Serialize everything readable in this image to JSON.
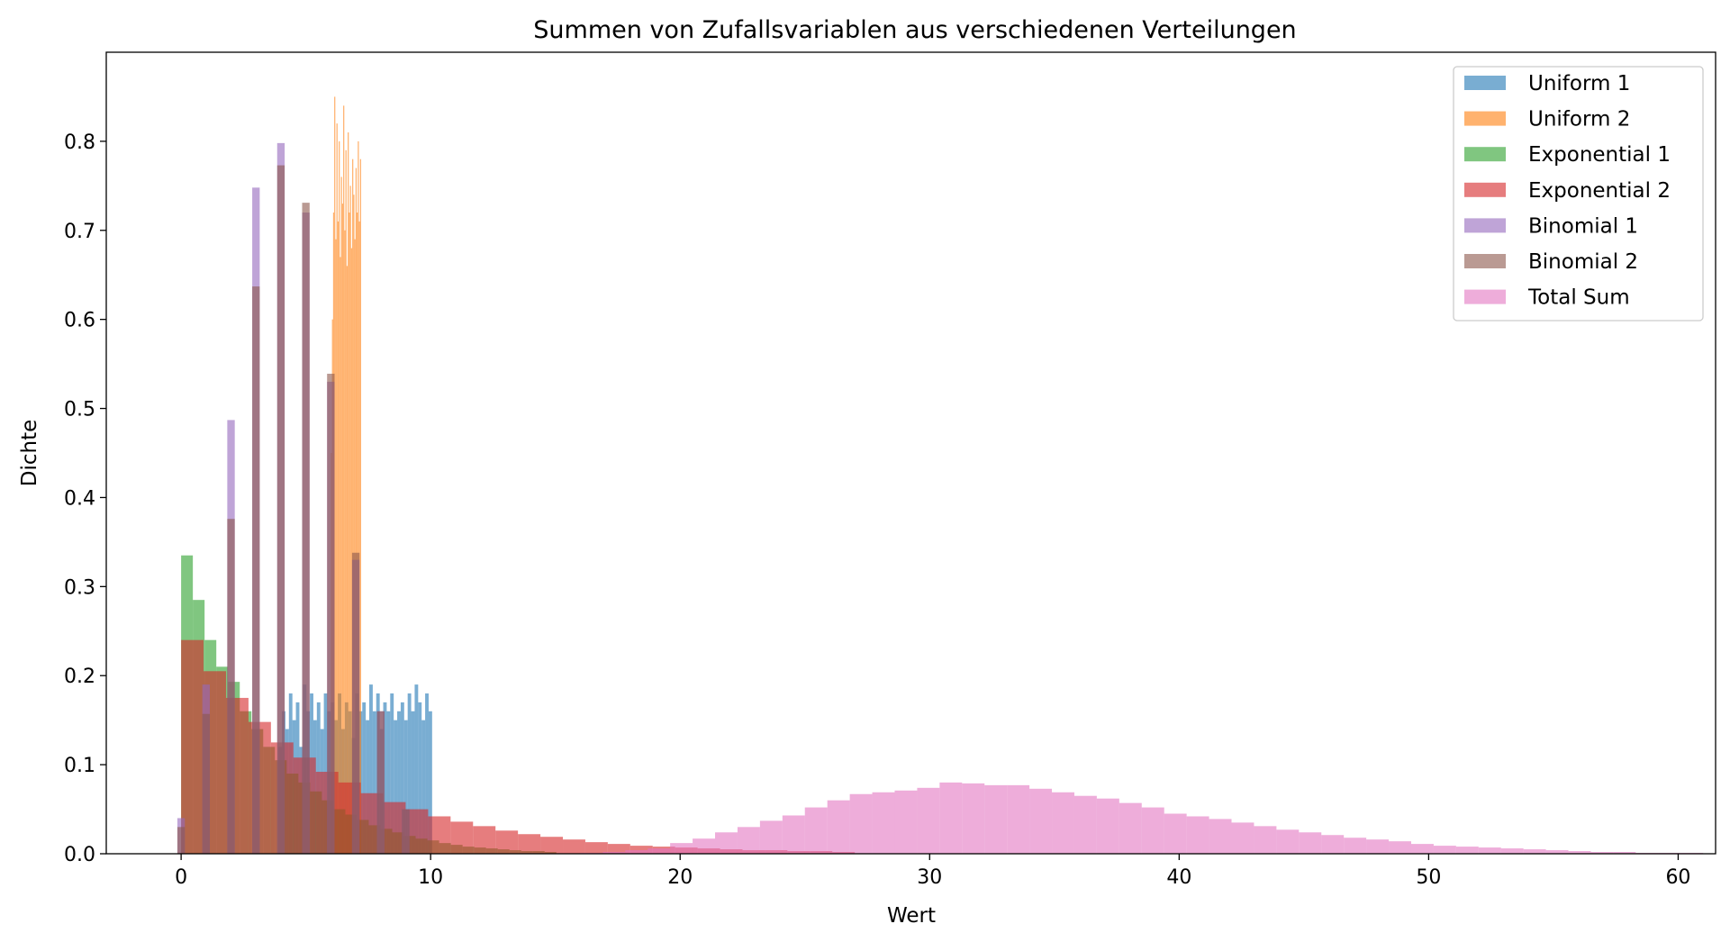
{
  "chart_data": {
    "type": "bar",
    "title": "Summen von Zufallsvariablen aus verschiedenen Verteilungen",
    "xlabel": "Wert",
    "ylabel": "Dichte",
    "xlim": [
      -3,
      61.5
    ],
    "ylim": [
      0,
      0.9
    ],
    "xticks": [
      0,
      10,
      20,
      30,
      40,
      50,
      60
    ],
    "yticks": [
      0.0,
      0.1,
      0.2,
      0.3,
      0.4,
      0.5,
      0.6,
      0.7,
      0.8
    ],
    "legend_position": "top-right",
    "grid": false,
    "series": [
      {
        "name": "Uniform 1",
        "color": "#1f77b4",
        "bin_width": 0.14,
        "x_start": 3.9,
        "values": [
          0.12,
          0.16,
          0.14,
          0.18,
          0.15,
          0.17,
          0.12,
          0.19,
          0.16,
          0.18,
          0.15,
          0.17,
          0.14,
          0.18,
          0.16,
          0.17,
          0.15,
          0.18,
          0.14,
          0.17,
          0.16,
          0.13,
          0.18,
          0.16,
          0.17,
          0.15,
          0.19,
          0.16,
          0.18,
          0.14,
          0.17,
          0.16,
          0.18,
          0.15,
          0.16,
          0.17,
          0.15,
          0.18,
          0.16,
          0.19,
          0.17,
          0.15,
          0.18,
          0.16
        ]
      },
      {
        "name": "Uniform 2",
        "color": "#ff7f0e",
        "bin_width": 0.045,
        "x_start": 6.0,
        "values": [
          0.45,
          0.6,
          0.72,
          0.85,
          0.69,
          0.82,
          0.71,
          0.8,
          0.67,
          0.76,
          0.73,
          0.84,
          0.7,
          0.79,
          0.66,
          0.81,
          0.72,
          0.75,
          0.68,
          0.78,
          0.74,
          0.69,
          0.77,
          0.72,
          0.8,
          0.71,
          0.78
        ]
      },
      {
        "name": "Exponential 1",
        "color": "#2ca02c",
        "bin_width": 0.47,
        "x_start": 0.0,
        "values": [
          0.335,
          0.285,
          0.24,
          0.21,
          0.193,
          0.16,
          0.14,
          0.12,
          0.105,
          0.09,
          0.08,
          0.07,
          0.06,
          0.05,
          0.044,
          0.038,
          0.032,
          0.028,
          0.024,
          0.02,
          0.017,
          0.015,
          0.012,
          0.01,
          0.008,
          0.007,
          0.006,
          0.005,
          0.004,
          0.003,
          0.003,
          0.002
        ]
      },
      {
        "name": "Exponential 2",
        "color": "#d62728",
        "bin_width": 0.9,
        "x_start": 0.0,
        "values": [
          0.24,
          0.205,
          0.175,
          0.148,
          0.125,
          0.108,
          0.092,
          0.08,
          0.068,
          0.058,
          0.05,
          0.042,
          0.036,
          0.031,
          0.026,
          0.022,
          0.019,
          0.016,
          0.013,
          0.011,
          0.009,
          0.008,
          0.007,
          0.006,
          0.005,
          0.004,
          0.004,
          0.003,
          0.003,
          0.002
        ]
      },
      {
        "name": "Binomial 1",
        "color": "#9467bd",
        "bin_width": 0.3,
        "x": [
          0,
          1,
          2,
          3,
          4,
          5,
          6,
          7,
          8,
          9
        ],
        "values": [
          0.04,
          0.19,
          0.487,
          0.748,
          0.798,
          0.72,
          0.53,
          0.33,
          0.16,
          0.05
        ]
      },
      {
        "name": "Binomial 2",
        "color": "#8c564b",
        "bin_width": 0.3,
        "x": [
          0,
          1,
          2,
          3,
          4,
          5,
          6,
          7,
          8,
          9
        ],
        "values": [
          0.03,
          0.157,
          0.376,
          0.637,
          0.773,
          0.731,
          0.539,
          0.338,
          0.16,
          0.05
        ]
      },
      {
        "name": "Total Sum",
        "color": "#e377c2",
        "bin_width": 0.9,
        "x_start": 16.0,
        "values": [
          0.001,
          0.002,
          0.004,
          0.006,
          0.012,
          0.017,
          0.024,
          0.03,
          0.037,
          0.043,
          0.052,
          0.06,
          0.067,
          0.069,
          0.071,
          0.074,
          0.08,
          0.079,
          0.077,
          0.077,
          0.073,
          0.069,
          0.065,
          0.062,
          0.057,
          0.052,
          0.045,
          0.042,
          0.039,
          0.035,
          0.031,
          0.027,
          0.024,
          0.021,
          0.018,
          0.016,
          0.014,
          0.011,
          0.009,
          0.008,
          0.007,
          0.006,
          0.005,
          0.004,
          0.003,
          0.002,
          0.002,
          0.001,
          0.001,
          0.001
        ]
      }
    ]
  }
}
